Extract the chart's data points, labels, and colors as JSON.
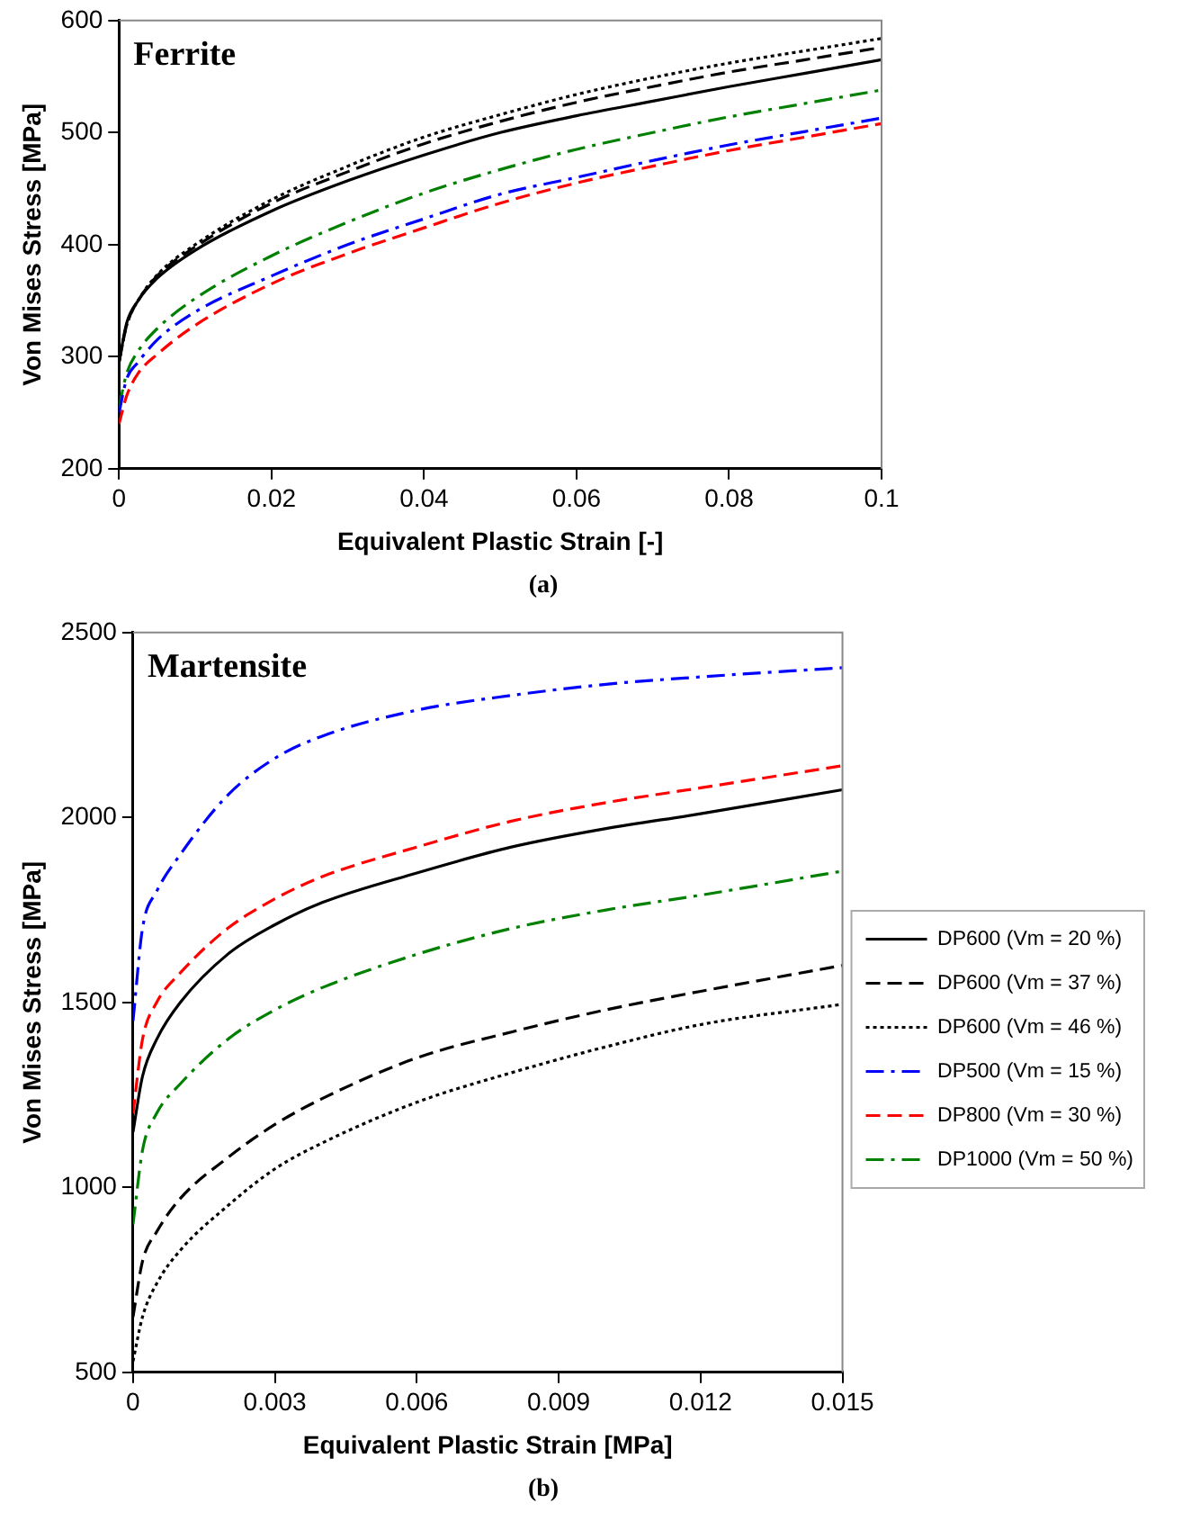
{
  "chart_data": [
    {
      "type": "line",
      "title": "Ferrite",
      "xlabel": "Equivalent Plastic Strain [-]",
      "ylabel": "Von Mises Stress [MPa]",
      "annotations": [
        "(a)"
      ],
      "x": [
        0,
        0.001,
        0.0025,
        0.005,
        0.01,
        0.02,
        0.03,
        0.04,
        0.05,
        0.06,
        0.07,
        0.08,
        0.09,
        0.1
      ],
      "xlim": [
        0,
        0.1
      ],
      "xticks": [
        0,
        0.02,
        0.04,
        0.06,
        0.08,
        0.1
      ],
      "ylim": [
        200,
        600
      ],
      "yticks": [
        200,
        300,
        400,
        500,
        600
      ],
      "grid": false,
      "legend": false,
      "marker": "none",
      "series": [
        {
          "color": "#000000",
          "line_style": "solid",
          "values": [
            295,
            330,
            350,
            370,
            395,
            430,
            457,
            480,
            500,
            515,
            528,
            541,
            553,
            565
          ]
        },
        {
          "color": "#000000",
          "line_style": "dashed",
          "values": [
            295,
            328,
            350,
            372,
            398,
            437,
            465,
            490,
            510,
            527,
            541,
            554,
            565,
            576
          ]
        },
        {
          "color": "#000000",
          "line_style": "dotted",
          "values": [
            295,
            328,
            350,
            373,
            400,
            440,
            470,
            496,
            516,
            534,
            549,
            562,
            573,
            584
          ]
        },
        {
          "color": "#0000ff",
          "line_style": "dashdot",
          "values": [
            250,
            280,
            295,
            315,
            340,
            372,
            400,
            423,
            445,
            460,
            475,
            489,
            501,
            513
          ]
        },
        {
          "color": "#ff0000",
          "line_style": "dashed",
          "values": [
            240,
            265,
            285,
            302,
            328,
            365,
            392,
            415,
            437,
            455,
            470,
            484,
            496,
            508
          ]
        },
        {
          "color": "#008000",
          "line_style": "dashdot",
          "values": [
            255,
            285,
            305,
            325,
            352,
            390,
            420,
            446,
            467,
            485,
            500,
            514,
            526,
            538
          ]
        }
      ]
    },
    {
      "type": "line",
      "title": "Martensite",
      "xlabel": "Equivalent Plastic Strain [MPa]",
      "ylabel": "Von Mises Stress [MPa]",
      "annotations": [
        "(b)"
      ],
      "x": [
        0,
        0.0002,
        0.0005,
        0.001,
        0.002,
        0.003,
        0.004,
        0.006,
        0.008,
        0.01,
        0.012,
        0.015
      ],
      "xlim": [
        0,
        0.015
      ],
      "xticks": [
        0,
        0.003,
        0.006,
        0.009,
        0.012,
        0.015
      ],
      "ylim": [
        500,
        2500
      ],
      "yticks": [
        500,
        1000,
        1500,
        2000,
        2500
      ],
      "grid": false,
      "legend": "right",
      "marker": "none",
      "series": [
        {
          "name": "DP600 (Vm = 20 %)",
          "color": "#000000",
          "line_style": "solid",
          "values": [
            1150,
            1300,
            1400,
            1500,
            1630,
            1710,
            1770,
            1850,
            1920,
            1970,
            2010,
            2075
          ]
        },
        {
          "name": "DP600 (Vm = 37 %)",
          "color": "#000000",
          "line_style": "dashed",
          "values": [
            650,
            800,
            880,
            970,
            1080,
            1170,
            1240,
            1350,
            1420,
            1480,
            1530,
            1600
          ]
        },
        {
          "name": "DP600 (Vm = 46 %)",
          "color": "#000000",
          "line_style": "dotted",
          "values": [
            530,
            650,
            740,
            830,
            950,
            1050,
            1120,
            1230,
            1310,
            1380,
            1440,
            1495
          ]
        },
        {
          "name": "DP500 (Vm = 15 %)",
          "color": "#0000ff",
          "line_style": "dashdot",
          "values": [
            1450,
            1700,
            1800,
            1900,
            2060,
            2160,
            2220,
            2290,
            2330,
            2360,
            2380,
            2405
          ]
        },
        {
          "name": "DP800 (Vm = 30 %)",
          "color": "#ff0000",
          "line_style": "dashed",
          "values": [
            1200,
            1400,
            1500,
            1580,
            1700,
            1780,
            1840,
            1920,
            1990,
            2040,
            2080,
            2140
          ]
        },
        {
          "name": "DP1000 (Vm = 50 %)",
          "color": "#008000",
          "line_style": "dashdot",
          "values": [
            900,
            1100,
            1200,
            1280,
            1400,
            1480,
            1540,
            1630,
            1700,
            1750,
            1790,
            1855
          ]
        }
      ]
    }
  ]
}
